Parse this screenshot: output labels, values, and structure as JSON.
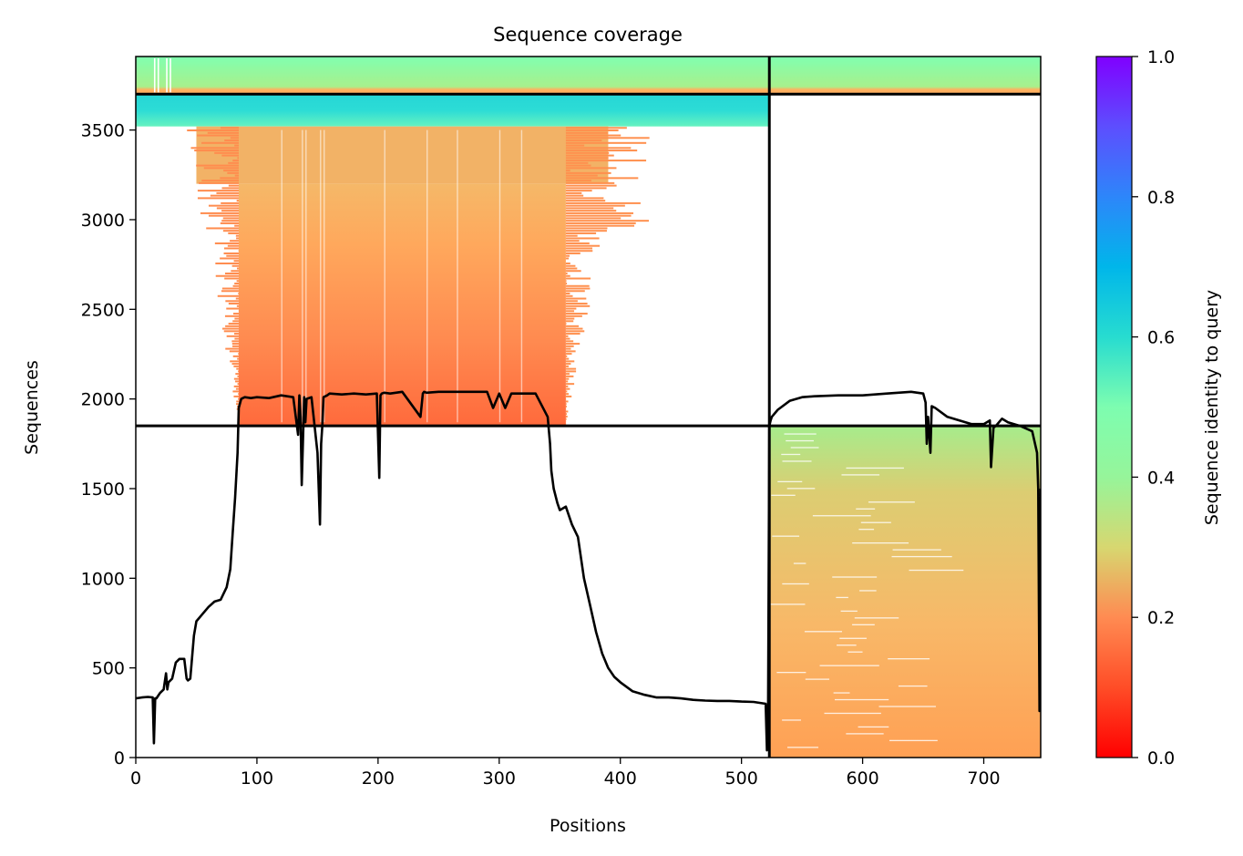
{
  "chart_data": {
    "type": "heatmap",
    "title": "Sequence coverage",
    "xlabel": "Positions",
    "ylabel": "Sequences",
    "xlim": [
      0,
      747
    ],
    "ylim": [
      0,
      3910
    ],
    "x_ticks": [
      "0",
      "100",
      "200",
      "300",
      "400",
      "500",
      "600",
      "700"
    ],
    "y_ticks": [
      "0",
      "500",
      "1000",
      "1500",
      "2000",
      "2500",
      "3000",
      "3500"
    ],
    "x_tick_values": [
      0,
      100,
      200,
      300,
      400,
      500,
      600,
      700
    ],
    "y_tick_values": [
      0,
      500,
      1000,
      1500,
      2000,
      2500,
      3000,
      3500
    ],
    "colorbar": {
      "label": "Sequence identity to query",
      "min": 0.0,
      "max": 1.0,
      "ticks": [
        "0.0",
        "0.2",
        "0.4",
        "0.6",
        "0.8",
        "1.0"
      ],
      "tick_values": [
        0.0,
        0.2,
        0.4,
        0.6,
        0.8,
        1.0
      ],
      "colormap": "rainbow (red to violet)"
    },
    "domain_boundaries": {
      "vertical_x": [
        523
      ],
      "horizontal_y": [
        1850,
        3700
      ]
    },
    "coverage_blocks": [
      {
        "x_start": 0,
        "x_end": 523,
        "y_start": 3700,
        "y_end": 3910,
        "identity": 0.45
      },
      {
        "x_start": 0,
        "x_end": 523,
        "y_start": 3520,
        "y_end": 3700,
        "identity": 0.58
      },
      {
        "x_start": 50,
        "x_end": 390,
        "y_start": 3200,
        "y_end": 3520,
        "identity": 0.3
      },
      {
        "x_start": 85,
        "x_end": 355,
        "y_start": 1850,
        "y_end": 3200,
        "identity": 0.2
      },
      {
        "x_start": 523,
        "x_end": 747,
        "y_start": 3700,
        "y_end": 3910,
        "identity": 0.45
      },
      {
        "x_start": 523,
        "x_end": 747,
        "y_start": 0,
        "y_end": 1850,
        "identity": 0.3
      }
    ],
    "coverage_line": {
      "name": "coverage",
      "x": [
        0,
        5,
        10,
        14,
        15,
        16,
        17,
        20,
        23,
        25,
        26,
        27,
        30,
        33,
        36,
        40,
        42,
        43,
        45,
        48,
        50,
        55,
        60,
        65,
        70,
        75,
        78,
        80,
        82,
        84,
        85,
        87,
        90,
        95,
        100,
        110,
        120,
        130,
        134,
        135,
        136,
        137,
        139,
        140,
        141,
        145,
        150,
        152,
        153,
        154,
        155,
        158,
        160,
        170,
        180,
        190,
        199,
        201,
        202,
        203,
        205,
        210,
        220,
        235,
        237,
        238,
        240,
        250,
        270,
        290,
        295,
        300,
        305,
        310,
        320,
        330,
        340,
        342,
        343,
        345,
        348,
        350,
        355,
        360,
        365,
        370,
        375,
        380,
        385,
        390,
        395,
        400,
        410,
        420,
        430,
        440,
        450,
        460,
        470,
        480,
        490,
        500,
        510,
        520,
        521,
        522,
        523,
        524,
        525,
        530,
        540,
        550,
        560,
        580,
        600,
        620,
        640,
        650,
        652,
        653,
        654,
        656,
        657,
        660,
        670,
        680,
        690,
        700,
        705,
        706,
        708,
        710,
        715,
        720,
        730,
        740,
        744,
        745,
        746,
        747
      ],
      "y": [
        330,
        335,
        338,
        335,
        80,
        330,
        330,
        360,
        380,
        470,
        380,
        420,
        440,
        530,
        550,
        550,
        440,
        430,
        440,
        680,
        760,
        800,
        840,
        870,
        880,
        950,
        1050,
        1250,
        1450,
        1700,
        1950,
        2000,
        2010,
        2005,
        2010,
        2005,
        2020,
        2010,
        1800,
        2020,
        1900,
        1520,
        2010,
        1870,
        2000,
        2010,
        1700,
        1300,
        1750,
        1850,
        2010,
        2020,
        2030,
        2025,
        2030,
        2025,
        2030,
        1560,
        2020,
        2030,
        2035,
        2030,
        2040,
        1900,
        2030,
        2040,
        2035,
        2040,
        2040,
        2040,
        1950,
        2030,
        1950,
        2030,
        2030,
        2030,
        1900,
        1750,
        1600,
        1500,
        1420,
        1380,
        1400,
        1300,
        1230,
        1000,
        850,
        700,
        580,
        500,
        450,
        420,
        370,
        350,
        335,
        335,
        330,
        322,
        318,
        316,
        316,
        312,
        310,
        300,
        40,
        300,
        1850,
        1880,
        1900,
        1940,
        1990,
        2010,
        2015,
        2020,
        2020,
        2030,
        2040,
        2030,
        1980,
        1750,
        1900,
        1700,
        1960,
        1950,
        1900,
        1880,
        1860,
        1860,
        1880,
        1620,
        1840,
        1850,
        1890,
        1870,
        1850,
        1820,
        1700,
        1500,
        260,
        1500
      ]
    }
  }
}
